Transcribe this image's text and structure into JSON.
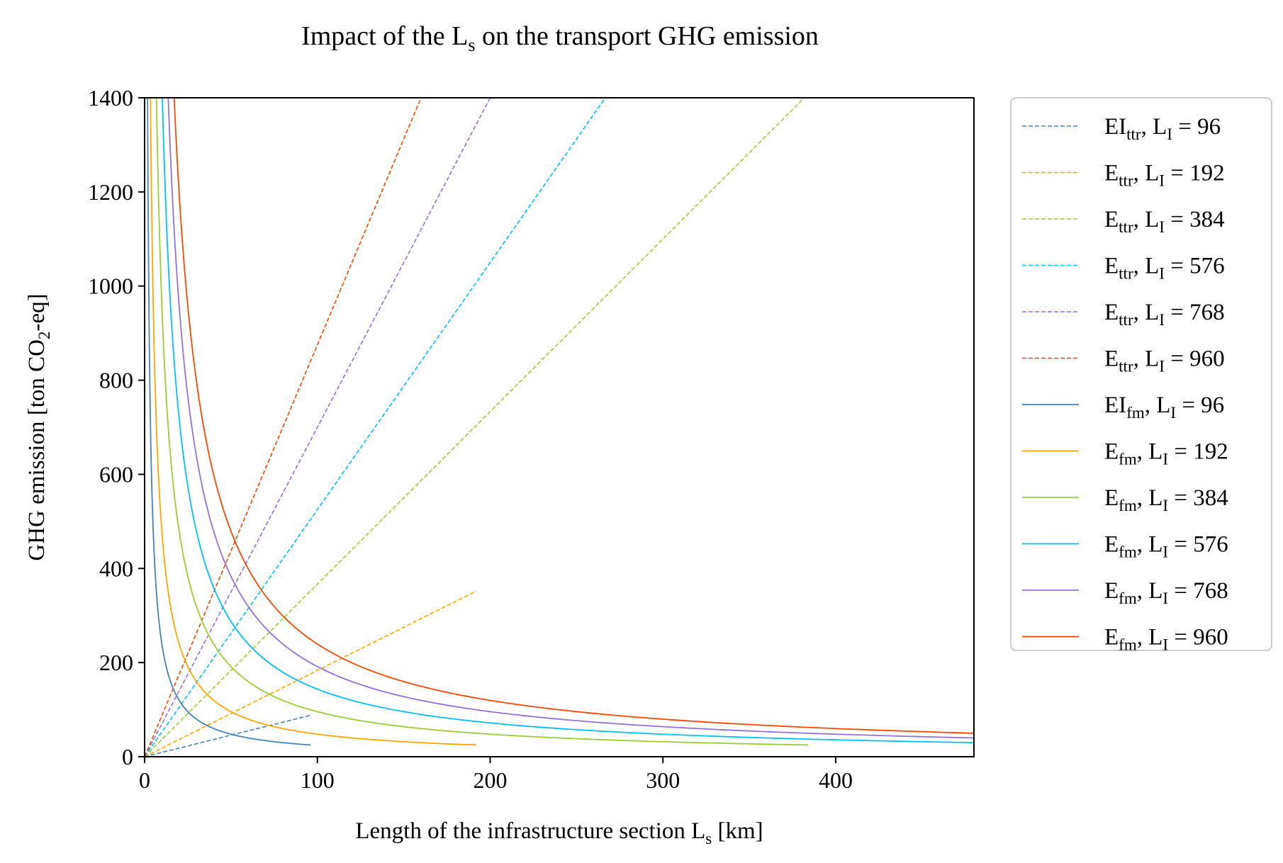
{
  "chart_data": {
    "type": "line",
    "title": "Impact of the L",
    "title_sub": "s",
    "title_rest": " on the transport GHG emission",
    "xlabel": "Length of the infrastructure section L",
    "xlabel_sub": "s",
    "xlabel_rest": " [km]",
    "ylabel": "GHG emission [ton CO",
    "ylabel_sub": "2",
    "ylabel_rest": "-eq]",
    "xlim": [
      0,
      480
    ],
    "ylim": [
      0,
      1400
    ],
    "xticks": [
      0,
      100,
      200,
      300,
      400
    ],
    "yticks": [
      0,
      200,
      400,
      600,
      800,
      1000,
      1200,
      1400
    ],
    "grid": false,
    "legend_placement": "outside-right",
    "series": [
      {
        "id": "ttr-96",
        "sym": "EI",
        "sub": "ttr",
        "rest": ", L",
        "lsub": "I",
        "eq": " = 96",
        "color": "#4682b4",
        "dash": true,
        "kind": "linear",
        "L": 96
      },
      {
        "id": "ttr-192",
        "sym": "E",
        "sub": "ttr",
        "rest": ", L",
        "lsub": "I",
        "eq": " = 192",
        "color": "#ffa500",
        "dash": true,
        "kind": "linear",
        "L": 192
      },
      {
        "id": "ttr-384",
        "sym": "E",
        "sub": "ttr",
        "rest": ", L",
        "lsub": "I",
        "eq": " = 384",
        "color": "#9acd32",
        "dash": true,
        "kind": "linear",
        "L": 384
      },
      {
        "id": "ttr-576",
        "sym": "E",
        "sub": "ttr",
        "rest": ", L",
        "lsub": "I",
        "eq": " = 576",
        "color": "#00bfff",
        "dash": true,
        "kind": "linear",
        "L": 576
      },
      {
        "id": "ttr-768",
        "sym": "E",
        "sub": "ttr",
        "rest": ", L",
        "lsub": "I",
        "eq": " = 768",
        "color": "#9370db",
        "dash": true,
        "kind": "linear",
        "L": 768
      },
      {
        "id": "ttr-960",
        "sym": "E",
        "sub": "ttr",
        "rest": ", L",
        "lsub": "I",
        "eq": " = 960",
        "color": "#ff4500",
        "dash": true,
        "kind": "linear",
        "L": 960
      },
      {
        "id": "fm-96",
        "sym": "EI",
        "sub": "fm",
        "rest": ", L",
        "lsub": "I",
        "eq": " = 96",
        "color": "#4682b4",
        "dash": false,
        "kind": "inverse",
        "L": 96
      },
      {
        "id": "fm-192",
        "sym": "E",
        "sub": "fm",
        "rest": ", L",
        "lsub": "I",
        "eq": " = 192",
        "color": "#ffa500",
        "dash": false,
        "kind": "inverse",
        "L": 192
      },
      {
        "id": "fm-384",
        "sym": "E",
        "sub": "fm",
        "rest": ", L",
        "lsub": "I",
        "eq": " = 384",
        "color": "#9acd32",
        "dash": false,
        "kind": "inverse",
        "L": 384
      },
      {
        "id": "fm-576",
        "sym": "E",
        "sub": "fm",
        "rest": ", L",
        "lsub": "I",
        "eq": " = 576",
        "color": "#00bfff",
        "dash": false,
        "kind": "inverse",
        "L": 576
      },
      {
        "id": "fm-768",
        "sym": "E",
        "sub": "fm",
        "rest": ", L",
        "lsub": "I",
        "eq": " = 768",
        "color": "#9370db",
        "dash": false,
        "kind": "inverse",
        "L": 768
      },
      {
        "id": "fm-960",
        "sym": "E",
        "sub": "fm",
        "rest": ", L",
        "lsub": "I",
        "eq": " = 960",
        "color": "#ff4500",
        "dash": false,
        "kind": "inverse",
        "L": 960
      }
    ],
    "model": {
      "ttr_slope": 0.875,
      "fm_coef": 1800,
      "ls_max": 480,
      "ls_min": 1
    }
  }
}
